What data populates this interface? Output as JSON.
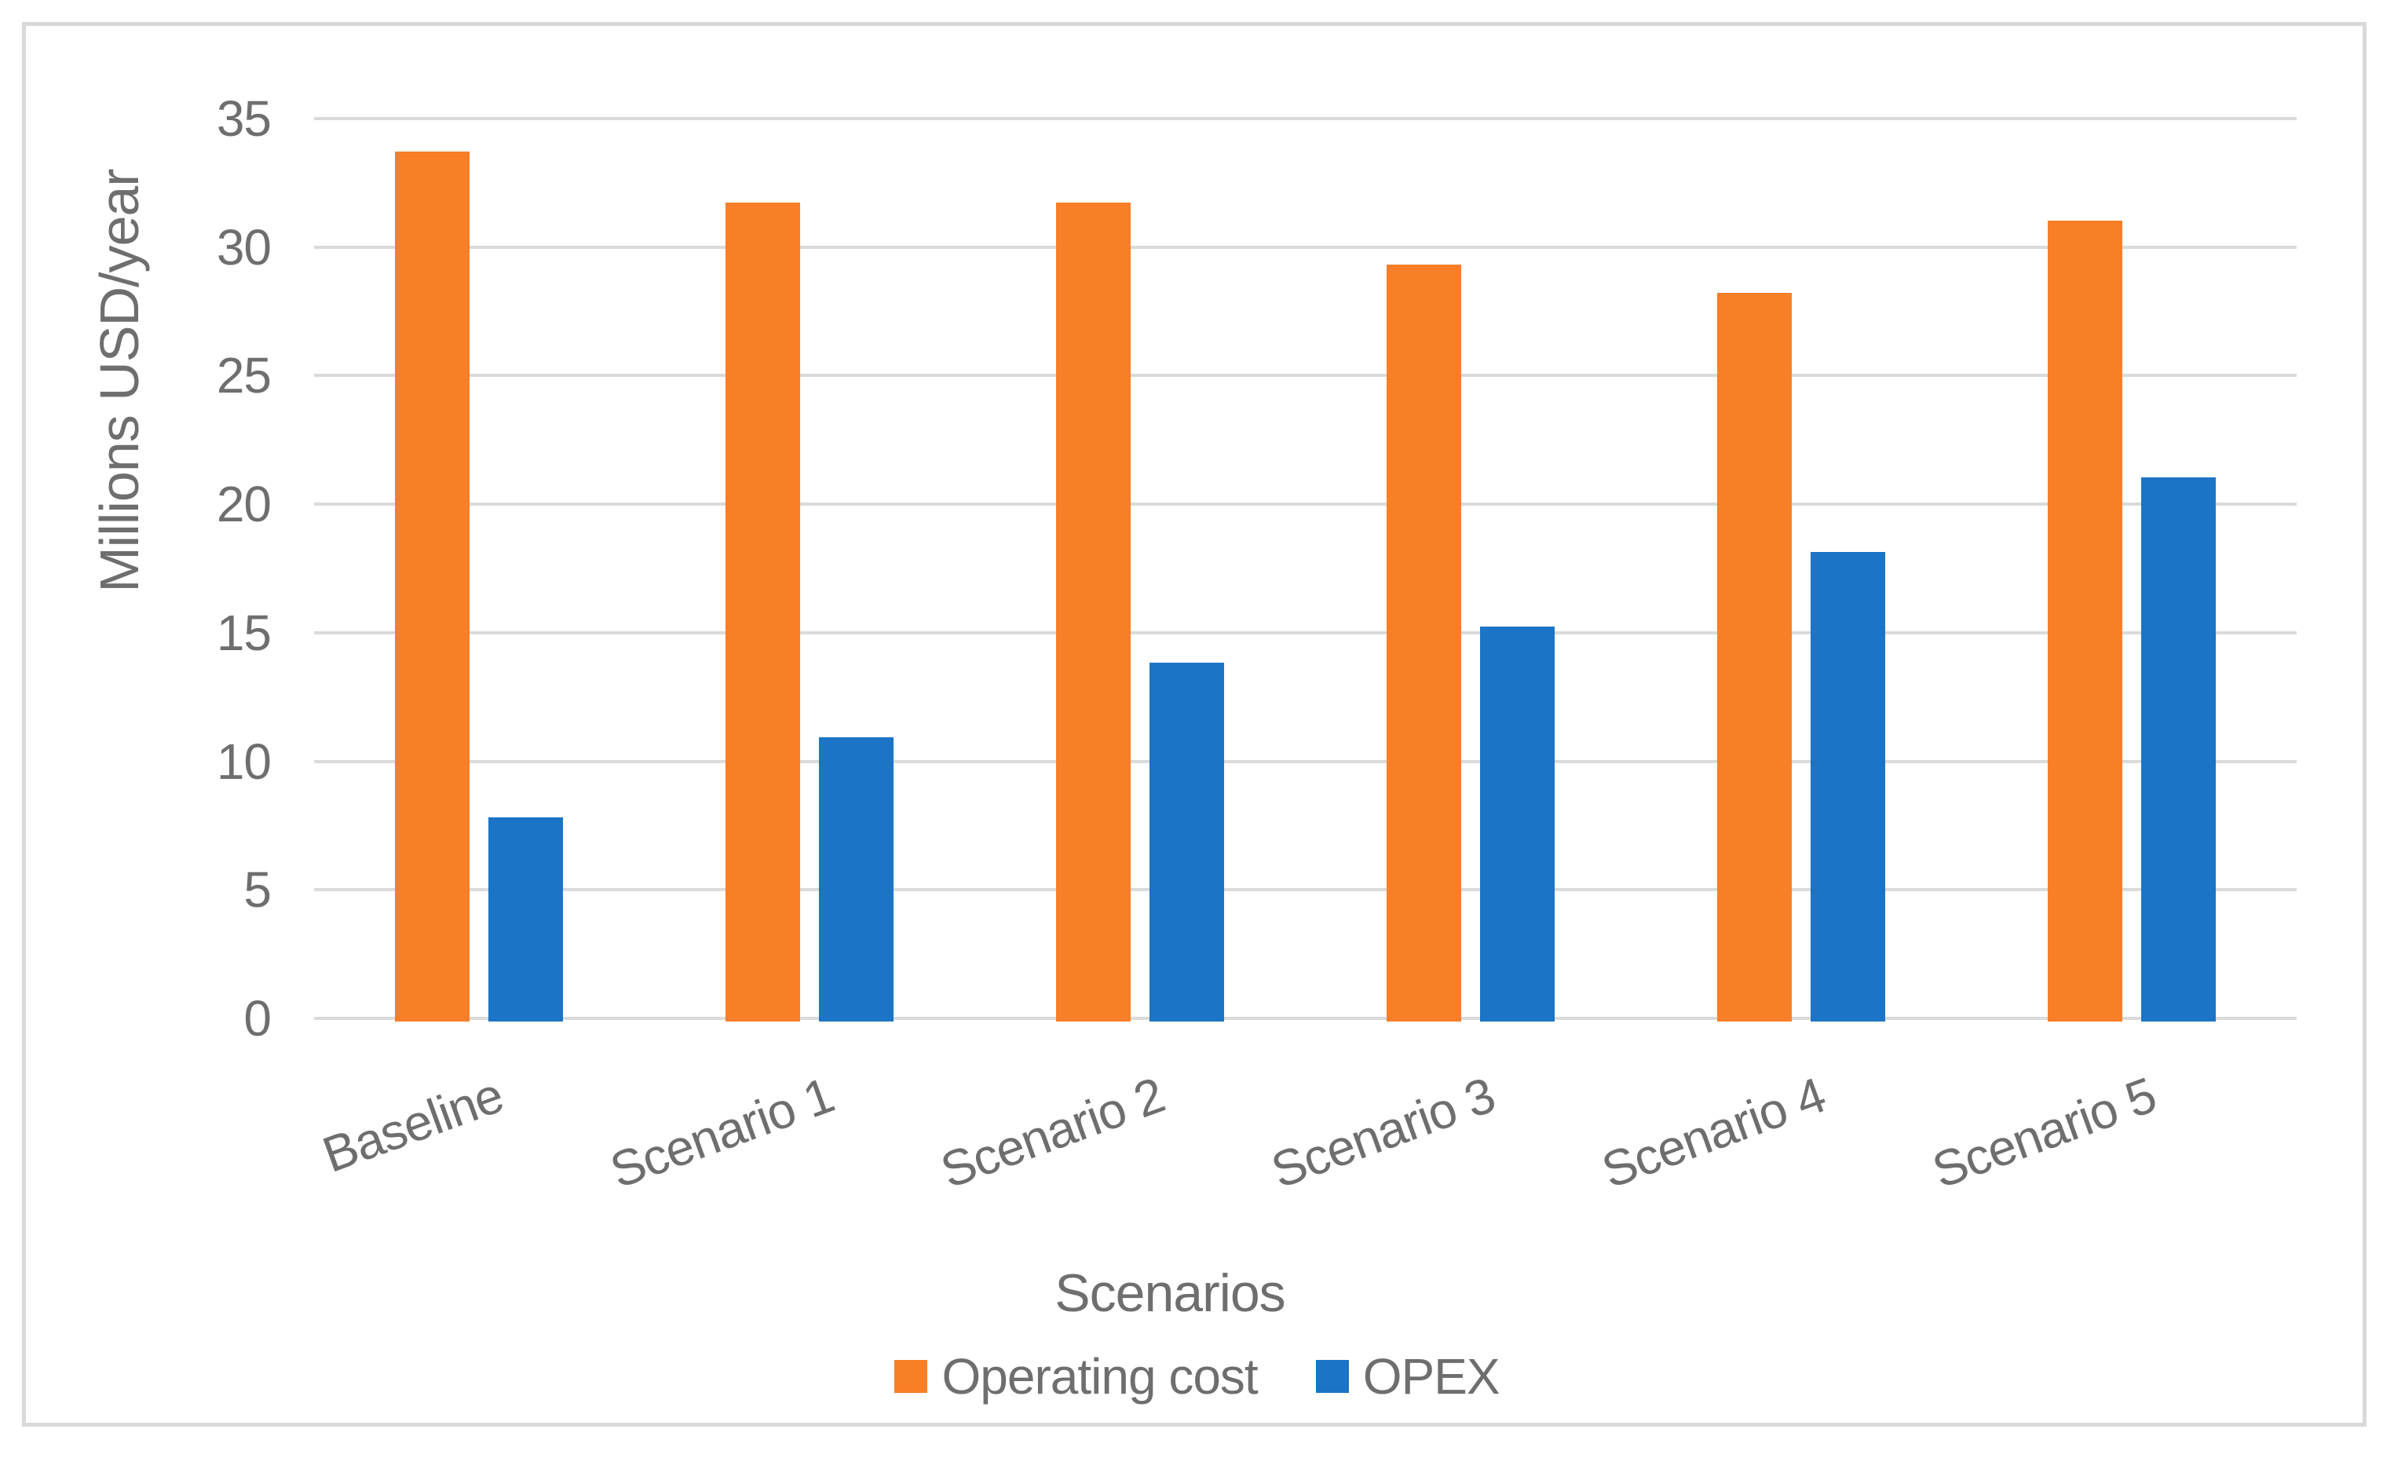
{
  "chart": {
    "background": "#ffffff",
    "frame_border_color": "#d9d9d9",
    "gridline_color": "#dadada",
    "axis_text_color": "#6e6e6e"
  },
  "chart_data": {
    "type": "bar",
    "title": "",
    "categories": [
      "Baseline",
      "Scenario 1",
      "Scenario 2",
      "Scenario 3",
      "Scenario 4",
      "Scenario 5"
    ],
    "series": [
      {
        "name": "Operating cost",
        "color": "#f87e27",
        "values": [
          33.7,
          31.7,
          31.7,
          29.3,
          28.2,
          31.0
        ]
      },
      {
        "name": "OPEX",
        "color": "#1b74c5",
        "values": [
          7.8,
          10.9,
          13.8,
          15.2,
          18.1,
          21.0
        ]
      }
    ],
    "xlabel": "Scenarios",
    "ylabel": "Millions USD/year",
    "ylim": [
      0,
      35
    ],
    "yticks": [
      0,
      5,
      10,
      15,
      20,
      25,
      30,
      35
    ],
    "grid": true,
    "legend_position": "bottom",
    "x_tick_rotation_deg": -20
  }
}
